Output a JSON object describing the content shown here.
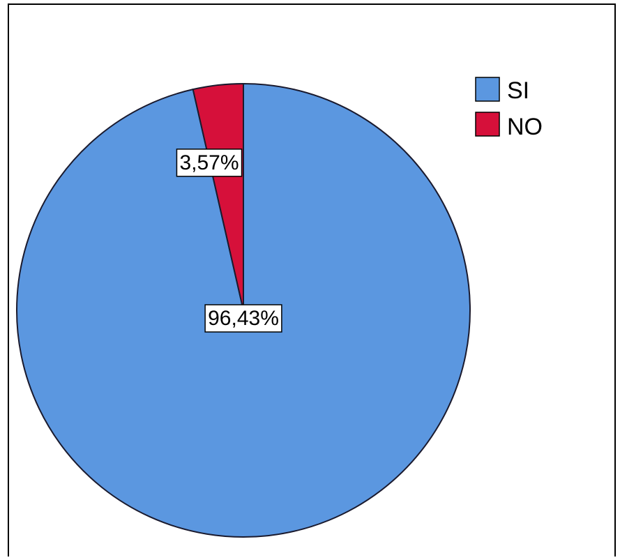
{
  "chart_data": {
    "type": "pie",
    "categories": [
      "SI",
      "NO"
    ],
    "values": [
      96.43,
      3.57
    ],
    "value_labels": [
      "96,43%",
      "3,57%"
    ],
    "colors": [
      "#5b97e0",
      "#d6103a"
    ],
    "legend": {
      "placement": "top-right",
      "entries": [
        "SI",
        "NO"
      ]
    }
  }
}
